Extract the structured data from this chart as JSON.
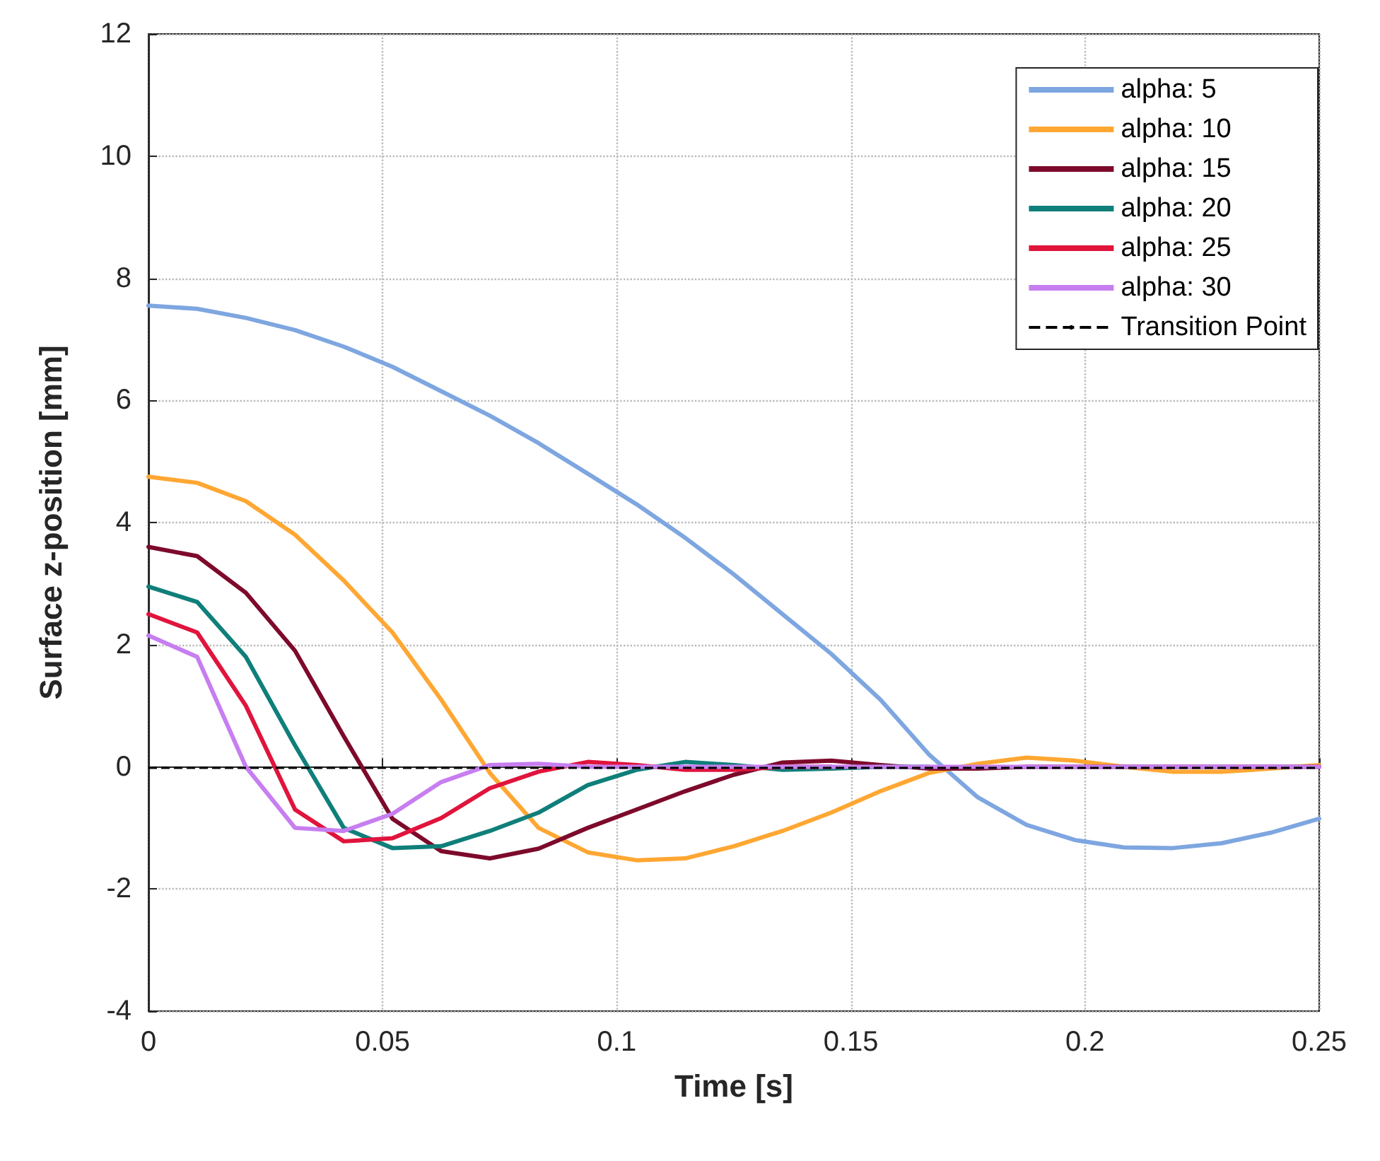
{
  "chart_data": {
    "type": "line",
    "xlabel": "Time [s]",
    "ylabel": "Surface z-position [mm]",
    "x": [
      0,
      0.0104,
      0.0208,
      0.0313,
      0.0417,
      0.0521,
      0.0625,
      0.0729,
      0.0833,
      0.0938,
      0.1042,
      0.1146,
      0.125,
      0.1354,
      0.1458,
      0.1563,
      0.1667,
      0.1771,
      0.1875,
      0.1979,
      0.2083,
      0.2188,
      0.2292,
      0.2396,
      0.25
    ],
    "series": [
      {
        "name": "alpha: 5",
        "color": "#7ea6e0",
        "values": [
          7.55,
          7.5,
          7.35,
          7.15,
          6.88,
          6.55,
          6.15,
          5.75,
          5.3,
          4.8,
          4.3,
          3.75,
          3.15,
          2.5,
          1.85,
          1.1,
          0.2,
          -0.5,
          -0.95,
          -1.2,
          -1.32,
          -1.33,
          -1.25,
          -1.08,
          -0.85
        ]
      },
      {
        "name": "alpha: 10",
        "color": "#ffa733",
        "values": [
          4.75,
          4.65,
          4.35,
          3.8,
          3.05,
          2.2,
          1.1,
          -0.1,
          -1.0,
          -1.4,
          -1.53,
          -1.5,
          -1.3,
          -1.05,
          -0.75,
          -0.4,
          -0.1,
          0.05,
          0.15,
          0.1,
          0,
          -0.08,
          -0.08,
          -0.03,
          0.03
        ]
      },
      {
        "name": "alpha: 15",
        "color": "#7d0a2b",
        "values": [
          3.6,
          3.45,
          2.85,
          1.9,
          0.5,
          -0.85,
          -1.38,
          -1.5,
          -1.34,
          -1.0,
          -0.7,
          -0.4,
          -0.13,
          0.07,
          0.1,
          0.03,
          -0.03,
          -0.03,
          0,
          0,
          0,
          0,
          0,
          0,
          0
        ]
      },
      {
        "name": "alpha: 20",
        "color": "#0f7f7a",
        "values": [
          2.95,
          2.7,
          1.8,
          0.35,
          -1.0,
          -1.33,
          -1.3,
          -1.05,
          -0.75,
          -0.3,
          -0.05,
          0.08,
          0.03,
          -0.05,
          -0.03,
          0,
          0,
          null,
          null,
          null,
          null,
          null,
          null,
          null,
          null
        ]
      },
      {
        "name": "alpha: 25",
        "color": "#e0143c",
        "values": [
          2.5,
          2.2,
          1.0,
          -0.7,
          -1.22,
          -1.17,
          -0.84,
          -0.35,
          -0.08,
          0.08,
          0.03,
          -0.05,
          -0.05,
          0,
          0,
          null,
          null,
          null,
          null,
          null,
          null,
          null,
          null,
          null,
          null
        ]
      },
      {
        "name": "alpha: 30",
        "color": "#c77ef0",
        "values": [
          2.15,
          1.8,
          0,
          -1.0,
          -1.05,
          -0.77,
          -0.25,
          0.03,
          0.05,
          0,
          0,
          0,
          0,
          0,
          0,
          0,
          0,
          0,
          0,
          0,
          0,
          0,
          0,
          0,
          0
        ]
      }
    ],
    "ref_lines": [
      {
        "axis": "y",
        "value": 0,
        "label": "Transition Point",
        "color": "#000000",
        "line_style": "dashed"
      }
    ],
    "xlim": [
      0,
      0.25
    ],
    "xticks": [
      0,
      0.05,
      0.1,
      0.15,
      0.2,
      0.25
    ],
    "ylim": [
      -4,
      12
    ],
    "yticks": [
      -4,
      -2,
      0,
      2,
      4,
      6,
      8,
      10,
      12
    ],
    "grid": true,
    "legend": "top right",
    "marker": "none",
    "line_style": "solid"
  }
}
